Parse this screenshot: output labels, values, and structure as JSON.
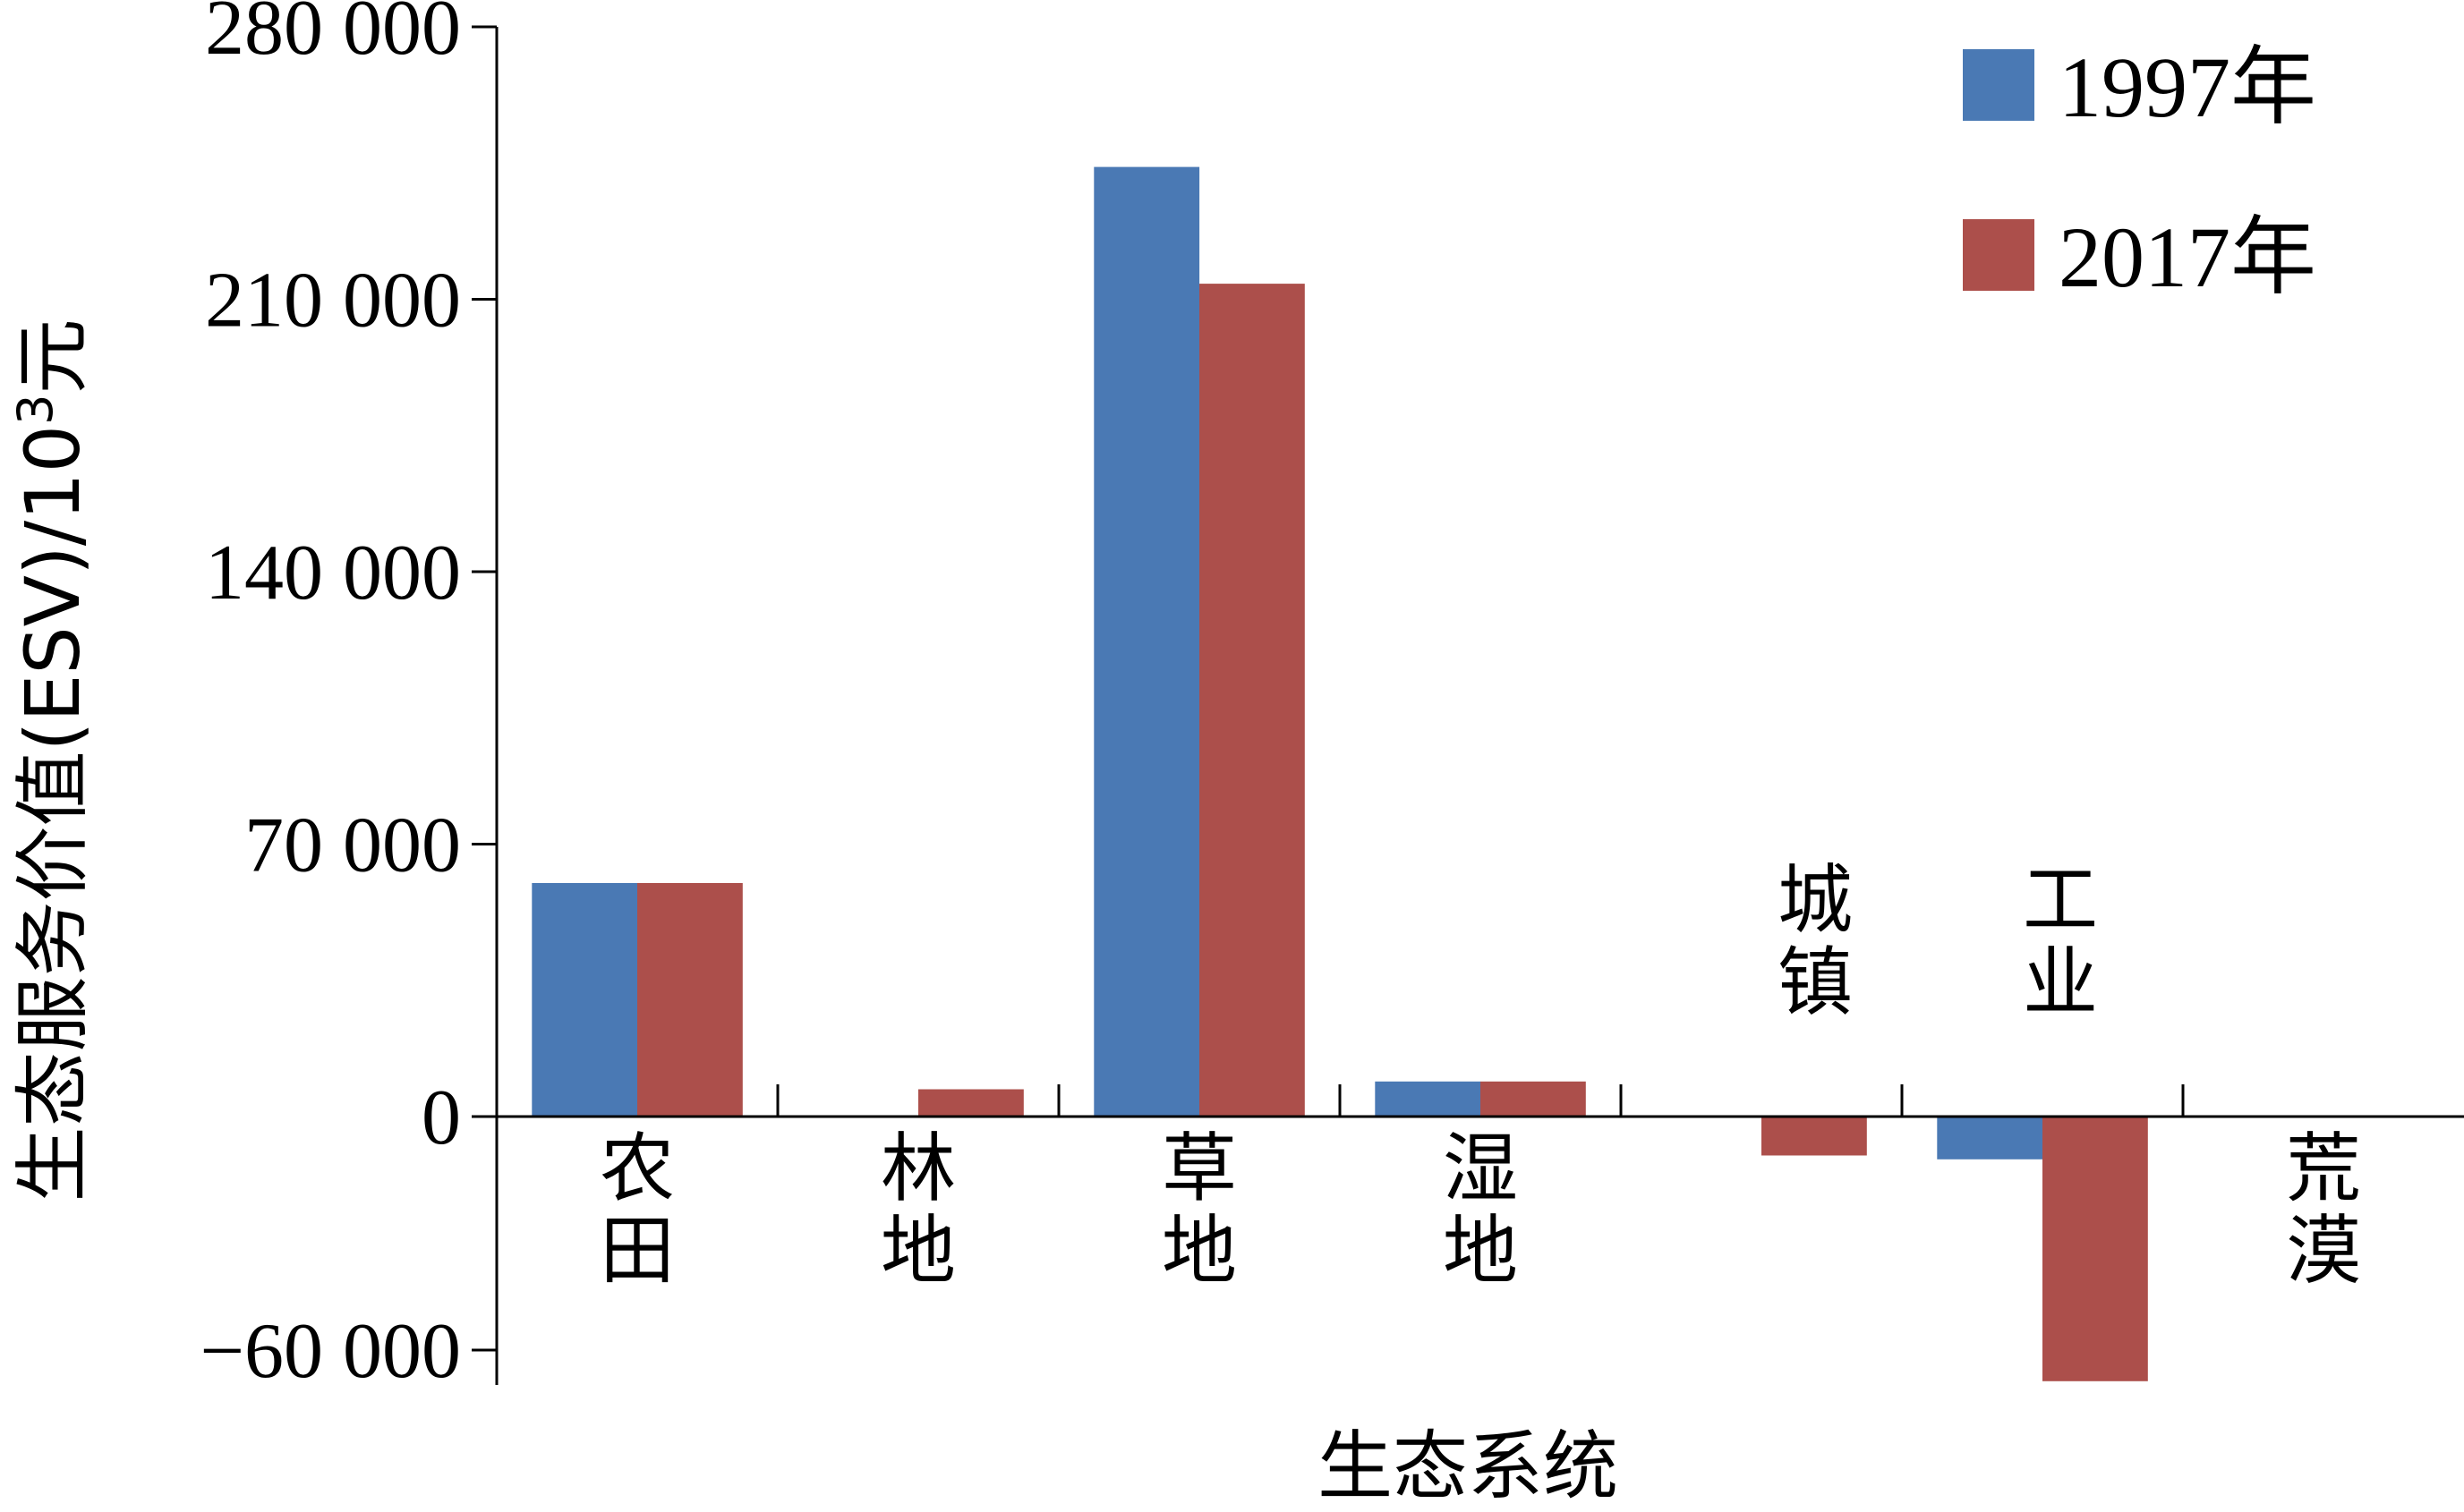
{
  "chart_data": {
    "type": "bar",
    "categories": [
      "农田",
      "林地",
      "草地",
      "湿地",
      "城镇",
      "工业",
      "荒漠"
    ],
    "series": [
      {
        "name": "1997年",
        "color": "#4a79b4",
        "values": [
          60000,
          0,
          244000,
          9000,
          0,
          -11000,
          0
        ]
      },
      {
        "name": "2017年",
        "color": "#ac4f4b",
        "values": [
          60000,
          7000,
          214000,
          9000,
          -10000,
          -68000,
          0
        ]
      }
    ],
    "ylim": [
      -68000,
      280000
    ],
    "yticks": [
      -60000,
      0,
      70000,
      140000,
      210000,
      280000
    ],
    "ytick_labels": [
      "−60 000",
      "0",
      "70 000",
      "140 000",
      "210 000",
      "280 000"
    ],
    "ylabel_main": "生态服务价值(ESV)/10",
    "ylabel_sup": "3",
    "ylabel_unit": "元",
    "xlabel": "生态系统",
    "legend_position": "top-right",
    "grid": false
  }
}
